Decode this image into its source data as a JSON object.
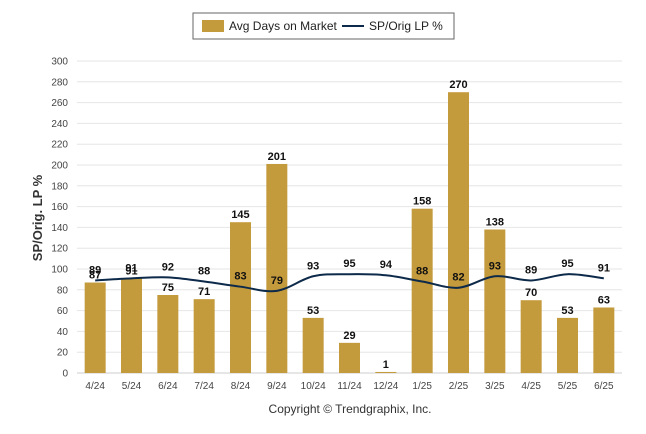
{
  "chart_data": {
    "type": "bar",
    "title": "",
    "ylabel": "SP/Orig. LP %",
    "xlabel": "",
    "ylim": [
      0,
      300
    ],
    "yticks": [
      0,
      20,
      40,
      60,
      80,
      100,
      120,
      140,
      160,
      180,
      200,
      220,
      240,
      260,
      280,
      300
    ],
    "grid": true,
    "legend_placement": "top-center",
    "categories": [
      "4/24",
      "5/24",
      "6/24",
      "7/24",
      "8/24",
      "9/24",
      "10/24",
      "11/24",
      "12/24",
      "1/25",
      "2/25",
      "3/25",
      "4/25",
      "5/25",
      "6/25"
    ],
    "series": [
      {
        "name": "Avg Days on Market",
        "type": "bar",
        "color": "#c49b3c",
        "values": [
          87,
          91,
          75,
          71,
          145,
          201,
          53,
          29,
          1,
          158,
          270,
          138,
          70,
          53,
          63
        ]
      },
      {
        "name": "SP/Orig LP %",
        "type": "line",
        "color": "#0d2a4a",
        "values": [
          89,
          91,
          92,
          88,
          83,
          79,
          93,
          95,
          94,
          88,
          82,
          93,
          89,
          95,
          91
        ]
      }
    ]
  },
  "footer": {
    "copyright": "Copyright © Trendgraphix, Inc."
  }
}
